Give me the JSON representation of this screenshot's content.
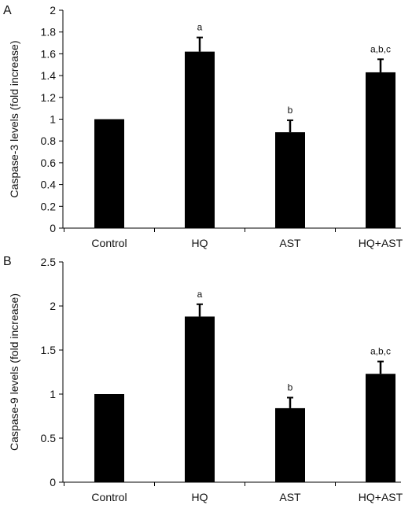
{
  "chart_data": [
    {
      "type": "bar",
      "panel_label": "A",
      "ylabel": "Caspase-3 levels (fold increase)",
      "xlabel": "",
      "categories": [
        "Control",
        "HQ",
        "AST",
        "HQ+AST"
      ],
      "values": [
        1.0,
        1.62,
        0.88,
        1.43
      ],
      "errors": [
        0,
        0.13,
        0.11,
        0.12
      ],
      "annotations": [
        "",
        "a",
        "b",
        "a,b,c"
      ],
      "ylim": [
        0,
        2
      ],
      "yticks": [
        0,
        0.2,
        0.4,
        0.6,
        0.8,
        1,
        1.2,
        1.4,
        1.6,
        1.8,
        2
      ],
      "ytick_labels": [
        "0",
        "0.2",
        "0.4",
        "0.6",
        "0.8",
        "1",
        "1.2",
        "1.4",
        "1.6",
        "1.8",
        "2"
      ],
      "grid": false,
      "bar_color": "#000000"
    },
    {
      "type": "bar",
      "panel_label": "B",
      "ylabel": "Caspase-9 levels (fold increase)",
      "xlabel": "",
      "categories": [
        "Control",
        "HQ",
        "AST",
        "HQ+AST"
      ],
      "values": [
        1.0,
        1.88,
        0.84,
        1.23
      ],
      "errors": [
        0,
        0.14,
        0.12,
        0.14
      ],
      "annotations": [
        "",
        "a",
        "b",
        "a,b,c"
      ],
      "ylim": [
        0,
        2.5
      ],
      "yticks": [
        0,
        0.5,
        1,
        1.5,
        2,
        2.5
      ],
      "ytick_labels": [
        "0",
        "0.5",
        "1",
        "1.5",
        "2",
        "2.5"
      ],
      "grid": false,
      "bar_color": "#000000"
    }
  ]
}
